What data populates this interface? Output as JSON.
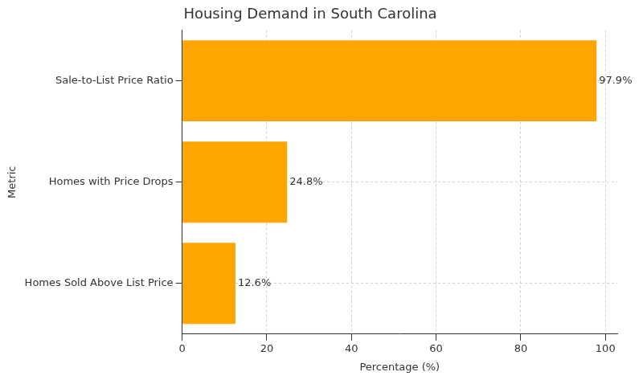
{
  "chart_data": {
    "type": "bar",
    "orientation": "horizontal",
    "title": "Housing Demand in South Carolina",
    "x_label": "Percentage (%)",
    "y_label": "Metric",
    "categories": [
      "Sale-to-List Price Ratio",
      "Homes with Price Drops",
      "Homes Sold Above List Price"
    ],
    "values": [
      97.9,
      24.8,
      12.6
    ],
    "value_labels": [
      "97.9%",
      "24.8%",
      "12.6%"
    ],
    "data_labels": true,
    "color": "#ffa500",
    "xlim": [
      0,
      102.8
    ],
    "xticks": [
      0,
      20,
      40,
      60,
      80,
      100
    ],
    "grid": true
  }
}
